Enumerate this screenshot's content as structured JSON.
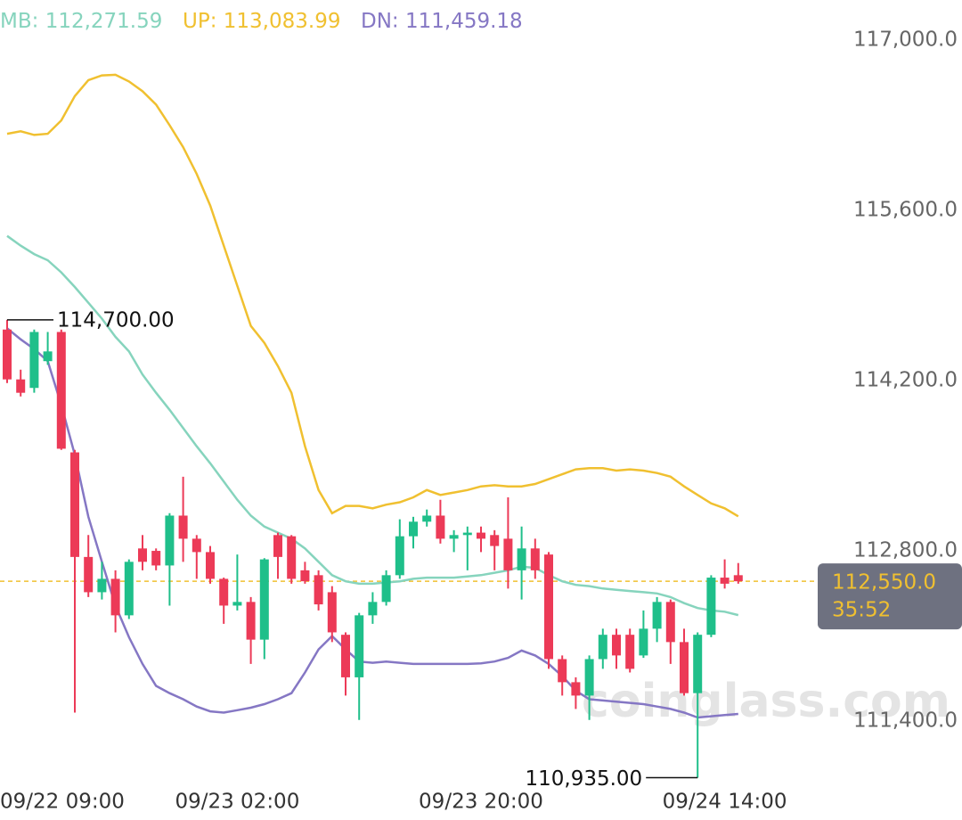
{
  "chart_data": {
    "type": "candlestick",
    "watermark": "coinglass.com",
    "up_color": "#1fbf8a",
    "down_color": "#ec3a57",
    "categories": [
      "09/22 09:00",
      null,
      null,
      null,
      null,
      null,
      null,
      null,
      null,
      null,
      null,
      null,
      null,
      null,
      null,
      null,
      null,
      "09/23 02:00",
      null,
      null,
      null,
      null,
      null,
      null,
      null,
      null,
      null,
      null,
      null,
      null,
      null,
      null,
      null,
      null,
      null,
      "09/23 20:00",
      null,
      null,
      null,
      null,
      null,
      null,
      null,
      null,
      null,
      null,
      null,
      null,
      null,
      null,
      null,
      null,
      null,
      "09/24 14:00",
      null
    ],
    "open": [
      114620,
      114210,
      114140,
      114360,
      114600,
      113610,
      112750,
      112460,
      112570,
      112270,
      112820,
      112800,
      112680,
      113090,
      112900,
      112790,
      112570,
      112350,
      112380,
      112070,
      112930,
      112920,
      112640,
      112600,
      112460,
      112110,
      111760,
      112270,
      112380,
      112600,
      112920,
      113040,
      113090,
      112900,
      112930,
      112950,
      112930,
      112900,
      112640,
      112820,
      112770,
      111910,
      111720,
      111610,
      111910,
      112110,
      112110,
      111940,
      112160,
      112380,
      112050,
      111630,
      112110,
      112580,
      112600
    ],
    "high": [
      114700,
      114290,
      114620,
      114600,
      114620,
      113630,
      112930,
      112710,
      112640,
      112730,
      112930,
      112820,
      113110,
      113410,
      112930,
      112840,
      112580,
      112770,
      112420,
      112740,
      112950,
      112930,
      112710,
      112640,
      112510,
      112130,
      112290,
      112460,
      112640,
      113060,
      113080,
      113140,
      113220,
      112970,
      113000,
      113000,
      112970,
      113240,
      113000,
      112900,
      112790,
      111940,
      111760,
      111940,
      112160,
      112160,
      112160,
      112310,
      112420,
      112400,
      112160,
      112130,
      112600,
      112730,
      112700
    ],
    "low": [
      114180,
      114070,
      114100,
      114330,
      113630,
      111470,
      112420,
      112400,
      112130,
      112240,
      112640,
      112640,
      112350,
      112710,
      112570,
      112530,
      112200,
      112310,
      111870,
      111910,
      112570,
      112530,
      112530,
      112310,
      112050,
      111610,
      111410,
      112200,
      112350,
      112570,
      112820,
      113000,
      112860,
      112790,
      112640,
      112790,
      112640,
      112490,
      112400,
      112570,
      111830,
      111610,
      111500,
      111410,
      111830,
      111830,
      111800,
      111920,
      112050,
      111870,
      111610,
      110935,
      112090,
      112490,
      112530
    ],
    "close": [
      114210,
      114100,
      114600,
      114440,
      113640,
      112750,
      112460,
      112570,
      112270,
      112710,
      112710,
      112680,
      113090,
      112900,
      112790,
      112570,
      112350,
      112380,
      112070,
      112730,
      112750,
      112570,
      112550,
      112360,
      112130,
      111760,
      112270,
      112380,
      112600,
      112920,
      113040,
      113090,
      112900,
      112930,
      112950,
      112900,
      112840,
      112640,
      112820,
      112640,
      111910,
      111720,
      111610,
      111910,
      112110,
      111940,
      111830,
      112160,
      112380,
      112050,
      111630,
      112110,
      112580,
      112530,
      112550
    ],
    "overlays": [
      {
        "name": "MB",
        "color": "#86d4bd",
        "last_label": "112,271.59",
        "values": [
          115390,
          115310,
          115240,
          115190,
          115090,
          114970,
          114840,
          114710,
          114560,
          114440,
          114250,
          114100,
          113960,
          113810,
          113660,
          113520,
          113370,
          113220,
          113090,
          113000,
          112950,
          112900,
          112820,
          112710,
          112600,
          112550,
          112530,
          112530,
          112540,
          112550,
          112570,
          112580,
          112580,
          112580,
          112590,
          112600,
          112620,
          112640,
          112670,
          112660,
          112600,
          112550,
          112520,
          112510,
          112490,
          112480,
          112470,
          112460,
          112450,
          112420,
          112370,
          112330,
          112310,
          112300,
          112271.59
        ]
      },
      {
        "name": "UP",
        "color": "#f0c030",
        "last_label": "113,083.99",
        "values": [
          116230,
          116250,
          116220,
          116230,
          116340,
          116540,
          116670,
          116710,
          116715,
          116660,
          116580,
          116470,
          116300,
          116120,
          115900,
          115640,
          115310,
          114980,
          114650,
          114510,
          114320,
          114100,
          113660,
          113300,
          113110,
          113170,
          113170,
          113150,
          113180,
          113200,
          113240,
          113300,
          113260,
          113280,
          113300,
          113330,
          113340,
          113330,
          113330,
          113350,
          113390,
          113430,
          113470,
          113480,
          113480,
          113460,
          113470,
          113460,
          113440,
          113410,
          113330,
          113260,
          113190,
          113150,
          113083.99
        ]
      },
      {
        "name": "DN",
        "color": "#8577c4",
        "last_label": "111,459.18",
        "values": [
          114630,
          114540,
          114460,
          114360,
          114000,
          113590,
          113080,
          112710,
          112350,
          112090,
          111870,
          111690,
          111630,
          111580,
          111520,
          111480,
          111470,
          111490,
          111510,
          111540,
          111580,
          111630,
          111800,
          111990,
          112100,
          111990,
          111890,
          111880,
          111890,
          111880,
          111870,
          111870,
          111870,
          111870,
          111870,
          111875,
          111890,
          111920,
          111980,
          111940,
          111870,
          111770,
          111650,
          111580,
          111570,
          111560,
          111550,
          111540,
          111520,
          111500,
          111470,
          111430,
          111440,
          111450,
          111459.18
        ]
      }
    ],
    "current_price": {
      "value": 112550,
      "label": "112,550.0",
      "countdown": "35:52",
      "color": "#f0c030"
    },
    "high_annotation": {
      "value": 114700,
      "label": "114,700.00",
      "index": 0
    },
    "low_annotation": {
      "value": 110935,
      "label": "110,935.00",
      "index": 51
    },
    "ylim": [
      110880,
      117330
    ],
    "yticks": [
      {
        "value": 117000,
        "label": "117,000.0"
      },
      {
        "value": 115600,
        "label": "115,600.0"
      },
      {
        "value": 114200,
        "label": "114,200.0"
      },
      {
        "value": 112800,
        "label": "112,800.0"
      },
      {
        "value": 111400,
        "label": "111,400.0"
      }
    ],
    "grid": false
  }
}
